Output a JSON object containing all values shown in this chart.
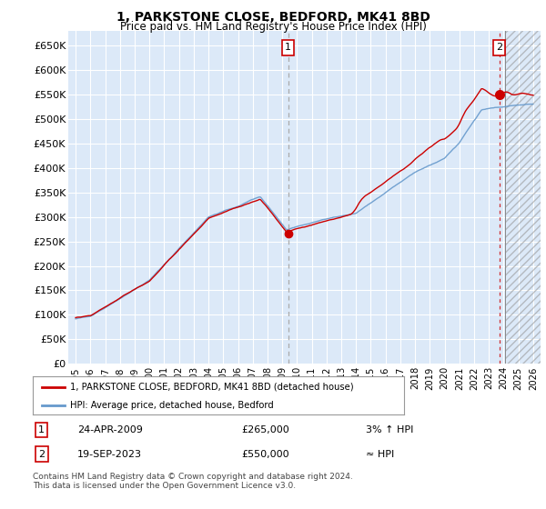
{
  "title": "1, PARKSTONE CLOSE, BEDFORD, MK41 8BD",
  "subtitle": "Price paid vs. HM Land Registry's House Price Index (HPI)",
  "ylabel_ticks": [
    "£0",
    "£50K",
    "£100K",
    "£150K",
    "£200K",
    "£250K",
    "£300K",
    "£350K",
    "£400K",
    "£450K",
    "£500K",
    "£550K",
    "£600K",
    "£650K"
  ],
  "ylim": [
    0,
    680000
  ],
  "yticks": [
    0,
    50000,
    100000,
    150000,
    200000,
    250000,
    300000,
    350000,
    400000,
    450000,
    500000,
    550000,
    600000,
    650000
  ],
  "x_start_year": 1995,
  "x_end_year": 2026,
  "sale1_date": "24-APR-2009",
  "sale1_price": 265000,
  "sale1_label": "1",
  "sale1_hpi_diff": "3% ↑ HPI",
  "sale2_date": "19-SEP-2023",
  "sale2_price": 550000,
  "sale2_label": "2",
  "sale2_hpi_diff": "≈ HPI",
  "legend_line1": "1, PARKSTONE CLOSE, BEDFORD, MK41 8BD (detached house)",
  "legend_line2": "HPI: Average price, detached house, Bedford",
  "footer": "Contains HM Land Registry data © Crown copyright and database right 2024.\nThis data is licensed under the Open Government Licence v3.0.",
  "bg_color": "#dce9f8",
  "hatch_color": "#c0c0c0",
  "line_color_red": "#cc0000",
  "line_color_blue": "#6699cc",
  "dot_color": "#cc0000",
  "vline1_color": "#aaaaaa",
  "vline2_color": "#cc0000"
}
